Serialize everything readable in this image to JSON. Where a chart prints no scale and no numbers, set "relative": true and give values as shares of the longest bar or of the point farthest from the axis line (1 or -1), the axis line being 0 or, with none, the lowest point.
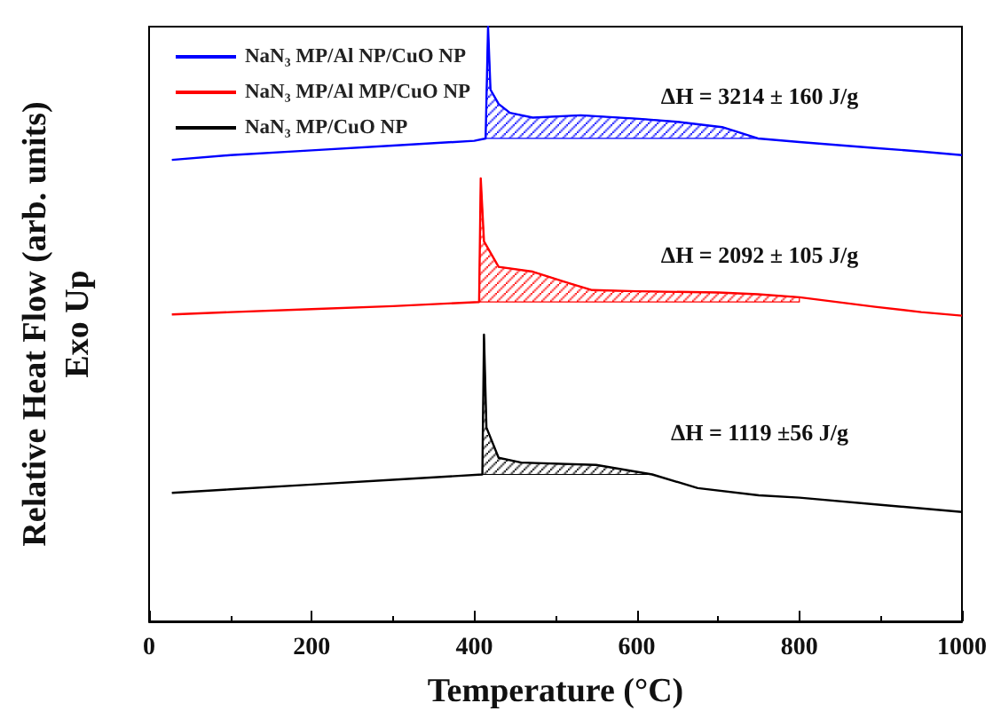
{
  "chart_data": {
    "type": "line",
    "relative": true,
    "xlabel": "Temperature (°C)",
    "ylabel": "Relative Heat Flow (arb. units)\nExo Up",
    "xlim": [
      0,
      1000
    ],
    "xticks": [
      0,
      200,
      400,
      600,
      800,
      1000
    ],
    "tick_labels": "x",
    "grid": false,
    "legend": "top left",
    "marker": "none",
    "line_style": "solid",
    "series": [
      {
        "name": "NaN₃ MP/Al NP/CuO NP",
        "color": "#0000ff",
        "x": [
          28,
          100,
          200,
          300,
          400,
          414,
          417,
          420,
          430,
          444,
          472,
          531,
          603,
          650,
          705,
          749,
          800,
          893,
          950,
          1000
        ],
        "values": [
          0.776,
          0.784,
          0.792,
          0.8,
          0.808,
          0.812,
          1.0,
          0.894,
          0.87,
          0.855,
          0.847,
          0.851,
          0.845,
          0.84,
          0.831,
          0.812,
          0.806,
          0.796,
          0.79,
          0.784
        ],
        "lower": [
          null,
          null,
          null,
          null,
          null,
          0.812,
          0.812,
          0.812,
          0.812,
          0.812,
          0.812,
          0.812,
          0.812,
          0.812,
          0.812,
          0.812,
          null,
          null,
          null,
          null
        ],
        "upper": [
          null,
          null,
          null,
          null,
          null,
          0.812,
          1.0,
          0.894,
          0.87,
          0.855,
          0.847,
          0.851,
          0.845,
          0.84,
          0.831,
          0.812,
          null,
          null,
          null,
          null
        ]
      },
      {
        "name": "NaN₃ MP/Al MP/CuO NP",
        "color": "#ff0000",
        "x": [
          28,
          100,
          200,
          300,
          406,
          408,
          412,
          430,
          472,
          516,
          545,
          600,
          700,
          749,
          800,
          893,
          950,
          1000
        ],
        "values": [
          0.516,
          0.52,
          0.525,
          0.53,
          0.537,
          0.745,
          0.639,
          0.596,
          0.588,
          0.569,
          0.557,
          0.555,
          0.553,
          0.55,
          0.545,
          0.529,
          0.52,
          0.514
        ],
        "lower": [
          null,
          null,
          null,
          null,
          0.537,
          0.537,
          0.537,
          0.537,
          0.537,
          0.537,
          0.537,
          0.537,
          0.537,
          0.537,
          0.537,
          null,
          null,
          null
        ],
        "upper": [
          null,
          null,
          null,
          null,
          0.537,
          0.745,
          0.639,
          0.596,
          0.588,
          0.569,
          0.557,
          0.555,
          0.553,
          0.55,
          0.545,
          null,
          null,
          null
        ]
      },
      {
        "name": "NaN₃ MP/CuO NP",
        "color": "#000000",
        "x": [
          28,
          100,
          200,
          300,
          410,
          412,
          415,
          430,
          458,
          550,
          619,
          675,
          750,
          800,
          900,
          1000
        ],
        "values": [
          0.216,
          0.222,
          0.23,
          0.238,
          0.247,
          0.482,
          0.326,
          0.275,
          0.267,
          0.263,
          0.247,
          0.224,
          0.212,
          0.208,
          0.196,
          0.184
        ],
        "lower": [
          null,
          null,
          null,
          null,
          0.247,
          0.247,
          0.247,
          0.247,
          0.247,
          0.247,
          0.247,
          null,
          null,
          null,
          null,
          null
        ],
        "upper": [
          null,
          null,
          null,
          null,
          0.247,
          0.482,
          0.326,
          0.275,
          0.267,
          0.263,
          0.247,
          null,
          null,
          null,
          null,
          null
        ]
      }
    ],
    "annotations": [
      "ΔH = 3214 ± 160 J/g",
      "ΔH = 2092 ± 105 J/g",
      "ΔH = 1119 ±56 J/g"
    ]
  }
}
